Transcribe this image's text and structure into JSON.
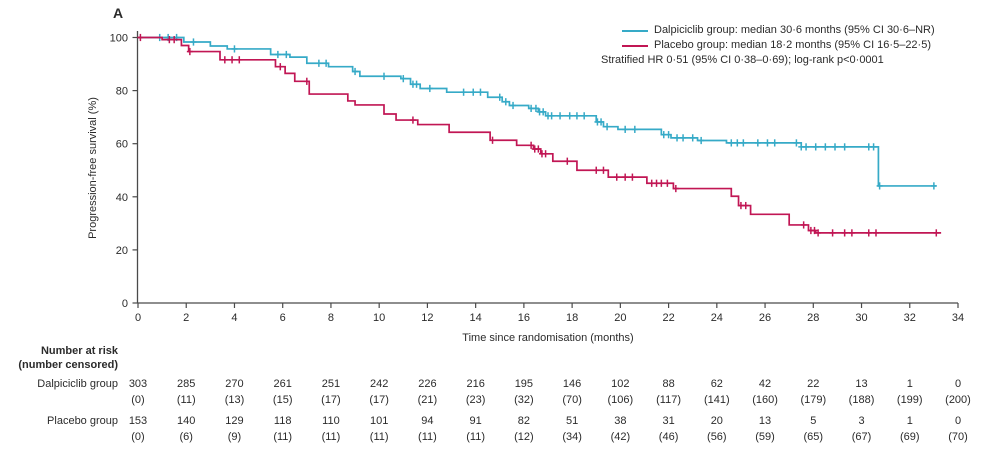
{
  "panel_label": "A",
  "legend": {
    "series": [
      {
        "label": "Dalpiciclib group: median 30·6 months (95% CI 30·6–NR)",
        "color": "#36AAC7"
      },
      {
        "label": "Placebo group: median 18·2 months (95% CI 16·5–22·5)",
        "color": "#C11654"
      }
    ],
    "note": "Stratified HR 0·51 (95% CI 0·38–0·69); log-rank p<0·0001"
  },
  "chart_data": {
    "type": "line",
    "subtype": "kaplan-meier-step",
    "title": "",
    "xlabel": "Time since randomisation (months)",
    "ylabel": "Progression-free survival (%)",
    "xlim": [
      0,
      34
    ],
    "ylim": [
      0,
      100
    ],
    "xticks": [
      0,
      2,
      4,
      6,
      8,
      10,
      12,
      14,
      16,
      18,
      20,
      22,
      24,
      26,
      28,
      30,
      32,
      34
    ],
    "yticks": [
      0,
      20,
      40,
      60,
      80,
      100
    ],
    "grid": false,
    "legend_position": "top-right",
    "axis_color": "#4a4a4a",
    "series": [
      {
        "name": "Dalpiciclib group",
        "color": "#36AAC7",
        "steps": [
          [
            0,
            100
          ],
          [
            1.9,
            98.3
          ],
          [
            3.0,
            96.8
          ],
          [
            3.7,
            95.7
          ],
          [
            5.5,
            93.6
          ],
          [
            6.3,
            92.6
          ],
          [
            7.0,
            90.3
          ],
          [
            7.9,
            89.0
          ],
          [
            8.9,
            87.2
          ],
          [
            9.2,
            85.4
          ],
          [
            10.9,
            84.5
          ],
          [
            11.3,
            82.4
          ],
          [
            11.7,
            80.8
          ],
          [
            12.8,
            79.4
          ],
          [
            14.5,
            77.5
          ],
          [
            15.1,
            75.8
          ],
          [
            15.4,
            74.4
          ],
          [
            16.2,
            73.3
          ],
          [
            16.6,
            72.0
          ],
          [
            16.9,
            70.5
          ],
          [
            19.0,
            68.2
          ],
          [
            19.3,
            66.4
          ],
          [
            19.9,
            65.4
          ],
          [
            21.7,
            63.4
          ],
          [
            22.1,
            62.2
          ],
          [
            23.2,
            61.2
          ],
          [
            24.4,
            60.3
          ],
          [
            27.5,
            58.8
          ],
          [
            30.7,
            44.1
          ],
          [
            33.1,
            44.1
          ]
        ],
        "censor_months": [
          0.9,
          1.25,
          1.6,
          2.3,
          4.0,
          5.8,
          6.15,
          7.5,
          7.8,
          9.0,
          10.2,
          11.0,
          11.4,
          11.55,
          12.1,
          13.5,
          13.9,
          14.2,
          15.0,
          15.25,
          15.55,
          16.3,
          16.5,
          16.65,
          16.8,
          17.0,
          17.15,
          17.5,
          17.9,
          18.2,
          18.5,
          19.05,
          19.2,
          19.45,
          20.2,
          20.6,
          21.8,
          22.0,
          22.35,
          22.6,
          23.0,
          23.35,
          24.6,
          24.85,
          25.1,
          25.7,
          26.1,
          26.4,
          27.3,
          27.5,
          27.7,
          28.1,
          28.5,
          28.9,
          29.3,
          30.3,
          30.5,
          30.75,
          33.0
        ]
      },
      {
        "name": "Placebo group",
        "color": "#C11654",
        "steps": [
          [
            0,
            100
          ],
          [
            1.0,
            99.2
          ],
          [
            1.8,
            97.0
          ],
          [
            2.1,
            94.7
          ],
          [
            3.4,
            91.6
          ],
          [
            5.7,
            89.0
          ],
          [
            6.1,
            86.5
          ],
          [
            6.5,
            83.5
          ],
          [
            7.1,
            78.7
          ],
          [
            8.7,
            76.1
          ],
          [
            9.0,
            74.6
          ],
          [
            10.2,
            71.2
          ],
          [
            10.7,
            68.9
          ],
          [
            11.6,
            67.2
          ],
          [
            12.9,
            64.3
          ],
          [
            14.6,
            61.3
          ],
          [
            15.7,
            59.4
          ],
          [
            16.4,
            58.0
          ],
          [
            16.7,
            56.2
          ],
          [
            17.2,
            53.4
          ],
          [
            18.2,
            50.0
          ],
          [
            19.5,
            47.4
          ],
          [
            21.1,
            45.1
          ],
          [
            22.2,
            43.1
          ],
          [
            24.6,
            40.2
          ],
          [
            24.9,
            36.7
          ],
          [
            25.4,
            33.4
          ],
          [
            27.0,
            29.4
          ],
          [
            27.8,
            27.3
          ],
          [
            28.1,
            26.4
          ],
          [
            33.3,
            26.4
          ]
        ],
        "censor_months": [
          0.1,
          1.3,
          1.5,
          2.15,
          3.6,
          3.9,
          4.2,
          5.9,
          7.0,
          11.4,
          14.7,
          16.3,
          16.45,
          16.6,
          16.75,
          16.9,
          17.8,
          19.0,
          19.3,
          19.85,
          20.2,
          20.5,
          21.3,
          21.5,
          21.7,
          21.95,
          22.3,
          25.0,
          25.2,
          27.6,
          27.9,
          28.05,
          28.2,
          28.8,
          29.3,
          29.6,
          30.3,
          30.6,
          33.1
        ]
      }
    ]
  },
  "risk_table": {
    "header_line1": "Number at risk",
    "header_line2": "(number censored)",
    "columns": [
      0,
      2,
      4,
      6,
      8,
      10,
      12,
      14,
      16,
      18,
      20,
      22,
      24,
      26,
      28,
      30,
      32,
      34
    ],
    "rows": [
      {
        "label": "Dalpiciclib group",
        "at_risk": [
          "303",
          "285",
          "270",
          "261",
          "251",
          "242",
          "226",
          "216",
          "195",
          "146",
          "102",
          "88",
          "62",
          "42",
          "22",
          "13",
          "1",
          "0"
        ],
        "censored": [
          "(0)",
          "(11)",
          "(13)",
          "(15)",
          "(17)",
          "(17)",
          "(21)",
          "(23)",
          "(32)",
          "(70)",
          "(106)",
          "(117)",
          "(141)",
          "(160)",
          "(179)",
          "(188)",
          "(199)",
          "(200)"
        ]
      },
      {
        "label": "Placebo group",
        "at_risk": [
          "153",
          "140",
          "129",
          "118",
          "110",
          "101",
          "94",
          "91",
          "82",
          "51",
          "38",
          "31",
          "20",
          "13",
          "5",
          "3",
          "1",
          "0"
        ],
        "censored": [
          "(0)",
          "(6)",
          "(9)",
          "(11)",
          "(11)",
          "(11)",
          "(11)",
          "(11)",
          "(12)",
          "(34)",
          "(42)",
          "(46)",
          "(56)",
          "(59)",
          "(65)",
          "(67)",
          "(69)",
          "(70)"
        ]
      }
    ]
  }
}
